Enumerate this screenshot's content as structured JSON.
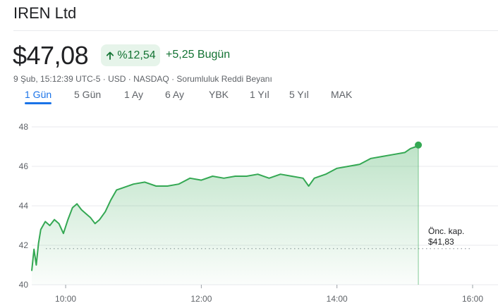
{
  "header": {
    "title": "IREN Ltd",
    "price": "$47,08",
    "change_percent": "%12,54",
    "change_abs": "+5,25 Bugün",
    "meta": "9 Şub, 15:12:39 UTC-5 · USD · NASDAQ · Sorumluluk Reddi Beyanı",
    "colors": {
      "positive": "#137333",
      "chip_bg": "#e6f4ea",
      "line": "#34a853",
      "accent": "#1a73e8"
    },
    "icons": {
      "change": "arrow-up-icon"
    }
  },
  "tabs": [
    {
      "label": "1 Gün",
      "active": true
    },
    {
      "label": "5 Gün",
      "active": false
    },
    {
      "label": "1 Ay",
      "active": false
    },
    {
      "label": "6 Ay",
      "active": false
    },
    {
      "label": "YBK",
      "active": false
    },
    {
      "label": "1 Yıl",
      "active": false
    },
    {
      "label": "5 Yıl",
      "active": false
    },
    {
      "label": "MAK",
      "active": false
    }
  ],
  "chart_data": {
    "type": "area",
    "x_axis_type": "time",
    "x_ticks": [
      "10:00",
      "12:00",
      "14:00",
      "16:00"
    ],
    "y_ticks": [
      48,
      46,
      44,
      42,
      40
    ],
    "ylim": [
      40,
      48
    ],
    "xlim": [
      "09:30",
      "16:00"
    ],
    "grid": true,
    "previous_close": {
      "label": "Önc. kap.",
      "value_label": "$41,83",
      "value": 41.83
    },
    "series": [
      {
        "x": [
          "09:30",
          "09:32",
          "09:34",
          "09:36",
          "09:38",
          "09:42",
          "09:46",
          "09:50",
          "09:54",
          "09:58",
          "10:02",
          "10:06",
          "10:10",
          "10:14",
          "10:18",
          "10:22",
          "10:26",
          "10:30",
          "10:35",
          "10:40",
          "10:45",
          "10:50",
          "11:00",
          "11:10",
          "11:20",
          "11:30",
          "11:40",
          "11:50",
          "12:00",
          "12:10",
          "12:20",
          "12:30",
          "12:40",
          "12:50",
          "13:00",
          "13:10",
          "13:20",
          "13:30",
          "13:35",
          "13:40",
          "13:50",
          "14:00",
          "14:10",
          "14:20",
          "14:30",
          "14:40",
          "14:50",
          "15:00",
          "15:05",
          "15:10",
          "15:12"
        ],
        "y": [
          40.7,
          41.8,
          41.0,
          42.1,
          42.8,
          43.2,
          43.0,
          43.3,
          43.1,
          42.6,
          43.3,
          43.9,
          44.1,
          43.8,
          43.6,
          43.4,
          43.1,
          43.3,
          43.7,
          44.3,
          44.8,
          44.9,
          45.1,
          45.2,
          45.0,
          45.0,
          45.1,
          45.4,
          45.3,
          45.5,
          45.4,
          45.5,
          45.5,
          45.6,
          45.4,
          45.6,
          45.5,
          45.4,
          45.0,
          45.4,
          45.6,
          45.9,
          46.0,
          46.1,
          46.4,
          46.5,
          46.6,
          46.7,
          46.9,
          47.0,
          47.08
        ]
      }
    ]
  }
}
